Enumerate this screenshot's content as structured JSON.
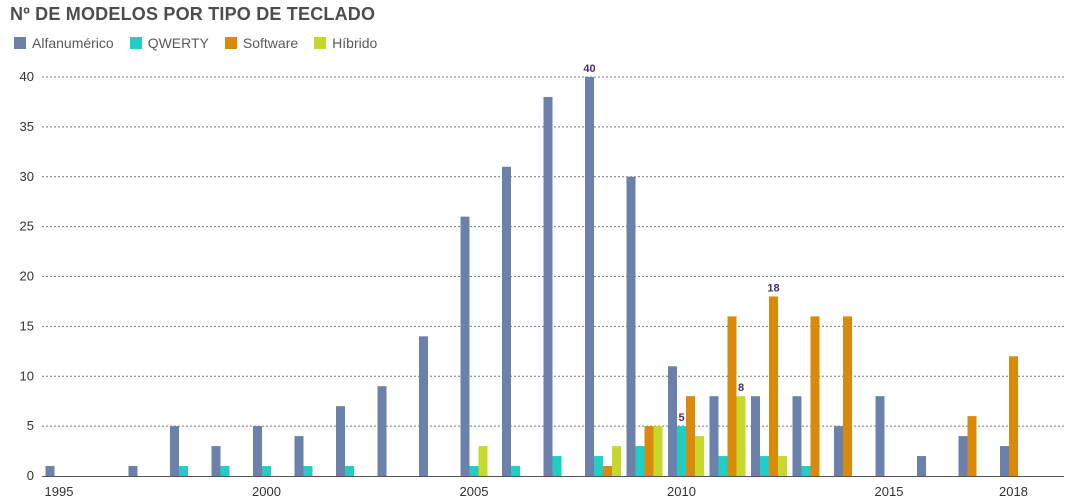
{
  "chart_data": {
    "type": "bar",
    "title": "Nº DE MODELOS POR TIPO DE TECLADO",
    "x": [
      1995,
      1996,
      1997,
      1998,
      1999,
      2000,
      2001,
      2002,
      2003,
      2004,
      2005,
      2006,
      2007,
      2008,
      2009,
      2010,
      2011,
      2012,
      2013,
      2014,
      2015,
      2016,
      2017,
      2018
    ],
    "x_tick_labels": [
      "1995",
      "2000",
      "2005",
      "2010",
      "2015",
      "2018"
    ],
    "y_ticks": [
      0,
      5,
      10,
      15,
      20,
      25,
      30,
      35,
      40
    ],
    "ylim": [
      0,
      42
    ],
    "grid": true,
    "legend_position": "top-left",
    "series": [
      {
        "name": "Alfanumérico",
        "color": "#6b80aa",
        "values": [
          1,
          0,
          1,
          5,
          3,
          5,
          4,
          7,
          9,
          14,
          26,
          31,
          38,
          40,
          30,
          11,
          8,
          8,
          8,
          5,
          8,
          2,
          4,
          3
        ]
      },
      {
        "name": "QWERTY",
        "color": "#1fcfc4",
        "values": [
          0,
          0,
          0,
          1,
          1,
          1,
          1,
          1,
          0,
          0,
          1,
          1,
          2,
          2,
          3,
          5,
          2,
          2,
          1,
          0,
          0,
          0,
          0,
          0
        ]
      },
      {
        "name": "Software",
        "color": "#d98a0a",
        "values": [
          0,
          0,
          0,
          0,
          0,
          0,
          0,
          0,
          0,
          0,
          0,
          0,
          0,
          1,
          5,
          8,
          16,
          18,
          16,
          16,
          0,
          0,
          6,
          12
        ]
      },
      {
        "name": "Híbrido",
        "color": "#c5d92d",
        "values": [
          0,
          0,
          0,
          0,
          0,
          0,
          0,
          0,
          0,
          0,
          3,
          0,
          0,
          3,
          5,
          4,
          8,
          2,
          0,
          0,
          0,
          0,
          0,
          0
        ]
      }
    ],
    "annotations": [
      {
        "series": "Alfanumérico",
        "x": 2008,
        "label": "40"
      },
      {
        "series": "QWERTY",
        "x": 2010,
        "label": "5"
      },
      {
        "series": "Híbrido",
        "x": 2011,
        "label": "8"
      },
      {
        "series": "Software",
        "x": 2012,
        "label": "18"
      }
    ]
  }
}
